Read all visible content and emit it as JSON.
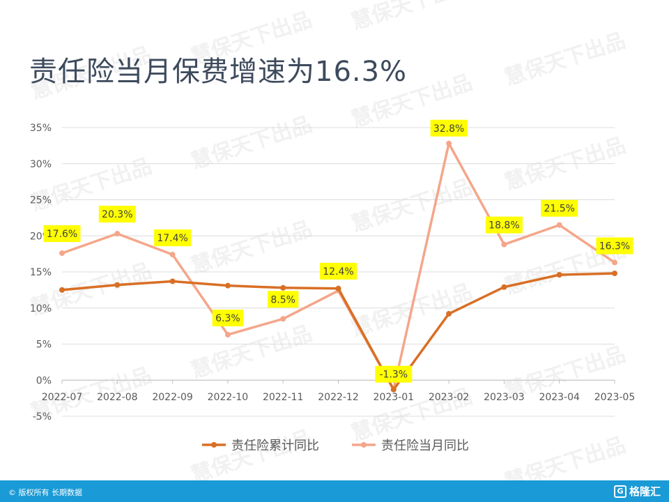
{
  "title": "责任险当月保费增速为16.3%",
  "watermark": "慧保天下出品",
  "footer": {
    "copyright": "© 版权所有 长期数据",
    "brand": "格隆汇",
    "brand_mark": "G"
  },
  "chart_data": {
    "type": "line",
    "categories": [
      "2022-07",
      "2022-08",
      "2022-09",
      "2022-10",
      "2022-11",
      "2022-12",
      "2023-01",
      "2023-02",
      "2023-03",
      "2023-04",
      "2023-05"
    ],
    "ylim": [
      -5,
      35
    ],
    "yticks": [
      "35%",
      "30%",
      "25%",
      "20%",
      "15%",
      "10%",
      "5%",
      "0%",
      "-5%"
    ],
    "ytick_values": [
      35,
      30,
      25,
      20,
      15,
      10,
      5,
      0,
      -5
    ],
    "grid": true,
    "legend": "bottom",
    "series": [
      {
        "name": "责任险累计同比",
        "color": "#d86f25",
        "values": [
          12.5,
          13.2,
          13.7,
          13.1,
          12.8,
          12.7,
          -1.3,
          9.2,
          12.9,
          14.6,
          14.8
        ]
      },
      {
        "name": "责任险当月同比",
        "color": "#f4a68a",
        "values": [
          17.6,
          20.3,
          17.4,
          6.3,
          8.5,
          12.4,
          -1.3,
          32.8,
          18.8,
          21.5,
          16.3
        ],
        "labels": [
          "17.6%",
          "20.3%",
          "17.4%",
          "6.3%",
          "8.5%",
          "12.4%",
          "-1.3%",
          "32.8%",
          "18.8%",
          "21.5%",
          "16.3%"
        ]
      }
    ],
    "label_bg": "#ffff00"
  }
}
